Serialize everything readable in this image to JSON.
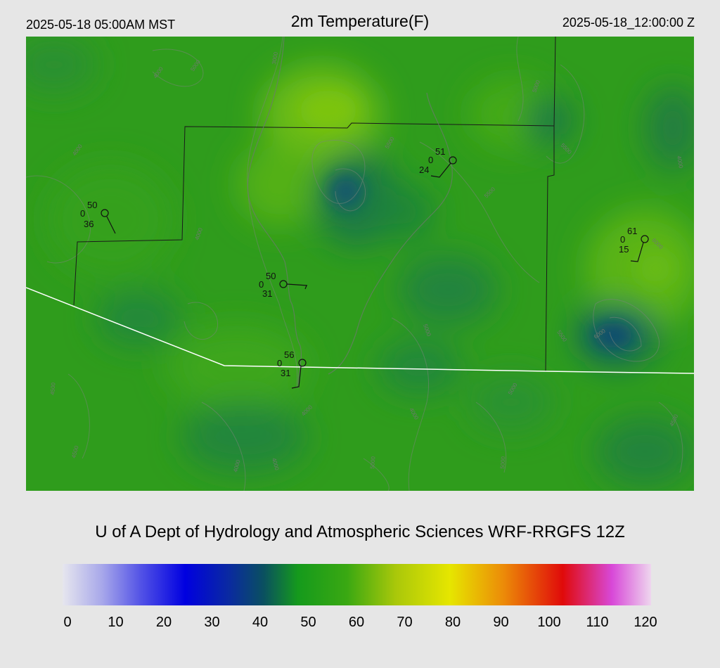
{
  "header": {
    "local_time": "2025-05-18 05:00AM MST",
    "title": "2m Temperature(F)",
    "utc_time": "2025-05-18_12:00:00 Z"
  },
  "footer": {
    "credit": "U of A Dept of Hydrology and Atmospheric Sciences WRF-RRGFS 12Z"
  },
  "colorbar": {
    "min": 0,
    "max": 120,
    "ticks": [
      "0",
      "10",
      "20",
      "30",
      "40",
      "50",
      "60",
      "70",
      "80",
      "90",
      "100",
      "110",
      "120"
    ],
    "stops": [
      {
        "value": 0,
        "color": "#e6e6ee"
      },
      {
        "value": 8,
        "color": "#a8a8ea"
      },
      {
        "value": 16,
        "color": "#5252e6"
      },
      {
        "value": 25,
        "color": "#0000e0"
      },
      {
        "value": 34,
        "color": "#0a2aa0"
      },
      {
        "value": 41,
        "color": "#0a5060"
      },
      {
        "value": 48,
        "color": "#159a1c"
      },
      {
        "value": 58,
        "color": "#3aa812"
      },
      {
        "value": 68,
        "color": "#aac80a"
      },
      {
        "value": 79,
        "color": "#e6e600"
      },
      {
        "value": 90,
        "color": "#ec8a08"
      },
      {
        "value": 102,
        "color": "#e00a0a"
      },
      {
        "value": 112,
        "color": "#d848d8"
      },
      {
        "value": 120,
        "color": "#eed6ee"
      }
    ]
  },
  "colors": {
    "background": "#e6e6e6",
    "state_border": "#ffffff",
    "county_border": "#1a1a1a",
    "contour": "#7a857a"
  },
  "stations": [
    {
      "temp": "50",
      "wind": "0",
      "dew": "36"
    },
    {
      "temp": "50",
      "wind": "0",
      "dew": "31"
    },
    {
      "temp": "56",
      "wind": "0",
      "dew": "31"
    },
    {
      "temp": "51",
      "wind": "0",
      "dew": "24"
    },
    {
      "temp": "61",
      "wind": "0",
      "dew": "15"
    }
  ],
  "contour_labels": [
    "3000",
    "4000",
    "5000",
    "5500",
    "6000",
    "4500",
    "3500"
  ]
}
